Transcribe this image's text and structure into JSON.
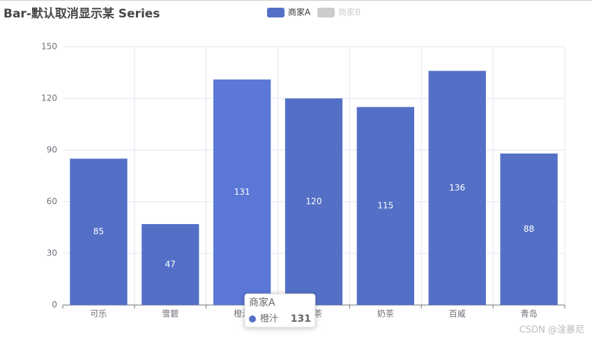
{
  "chart_data": {
    "type": "bar",
    "title": "Bar-默认取消显示某 Series",
    "categories": [
      "可乐",
      "雪碧",
      "橙汁",
      "绿茶",
      "奶茶",
      "百威",
      "青岛"
    ],
    "series": [
      {
        "name": "商家A",
        "color": "#5470c6",
        "values": [
          85,
          47,
          131,
          120,
          115,
          136,
          88
        ]
      }
    ],
    "hidden_series": [
      {
        "name": "商家B",
        "color": "#cccccc"
      }
    ],
    "ylim": [
      0,
      150
    ],
    "yticks": [
      0,
      30,
      60,
      90,
      120,
      150
    ],
    "grid": true,
    "legend": "top",
    "tooltip": {
      "series": 0,
      "index": 2
    },
    "watermark": "CSDN @淦暴尼"
  }
}
